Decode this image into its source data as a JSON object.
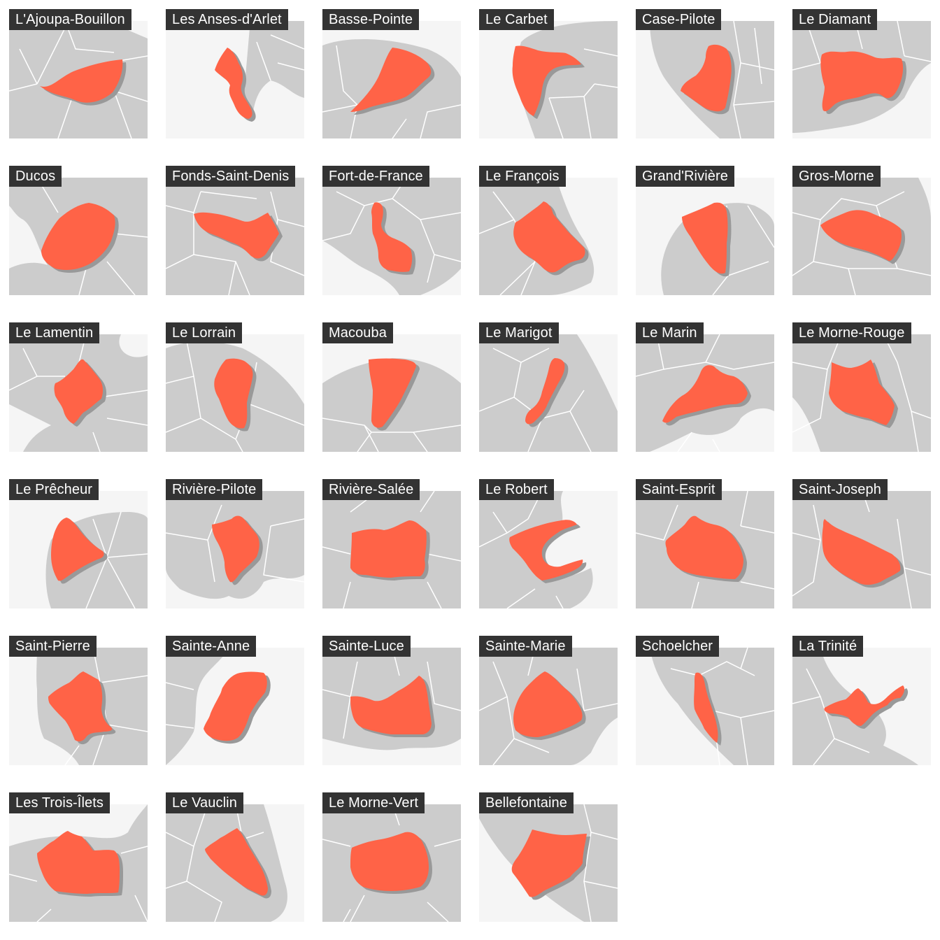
{
  "colors": {
    "sea": "#f5f5f5",
    "land": "#cccccc",
    "boundary": "#ffffff",
    "highlight": "#ff6347",
    "shadow": "#999999",
    "label_bg": "#333333",
    "label_text": "#ffffff"
  },
  "communes": [
    {
      "name": "L'Ajoupa-Bouillon"
    },
    {
      "name": "Les Anses-d'Arlet"
    },
    {
      "name": "Basse-Pointe"
    },
    {
      "name": "Le Carbet"
    },
    {
      "name": "Case-Pilote"
    },
    {
      "name": "Le Diamant"
    },
    {
      "name": "Ducos"
    },
    {
      "name": "Fonds-Saint-Denis"
    },
    {
      "name": "Fort-de-France"
    },
    {
      "name": "Le François"
    },
    {
      "name": "Grand'Rivière"
    },
    {
      "name": "Gros-Morne"
    },
    {
      "name": "Le Lamentin"
    },
    {
      "name": "Le Lorrain"
    },
    {
      "name": "Macouba"
    },
    {
      "name": "Le Marigot"
    },
    {
      "name": "Le Marin"
    },
    {
      "name": "Le Morne-Rouge"
    },
    {
      "name": "Le Prêcheur"
    },
    {
      "name": "Rivière-Pilote"
    },
    {
      "name": "Rivière-Salée"
    },
    {
      "name": "Le Robert"
    },
    {
      "name": "Saint-Esprit"
    },
    {
      "name": "Saint-Joseph"
    },
    {
      "name": "Saint-Pierre"
    },
    {
      "name": "Sainte-Anne"
    },
    {
      "name": "Sainte-Luce"
    },
    {
      "name": "Sainte-Marie"
    },
    {
      "name": "Schoelcher"
    },
    {
      "name": "La Trinité"
    },
    {
      "name": "Les Trois-Îlets"
    },
    {
      "name": "Le Vauclin"
    },
    {
      "name": "Le Morne-Vert"
    },
    {
      "name": "Bellefontaine"
    }
  ]
}
